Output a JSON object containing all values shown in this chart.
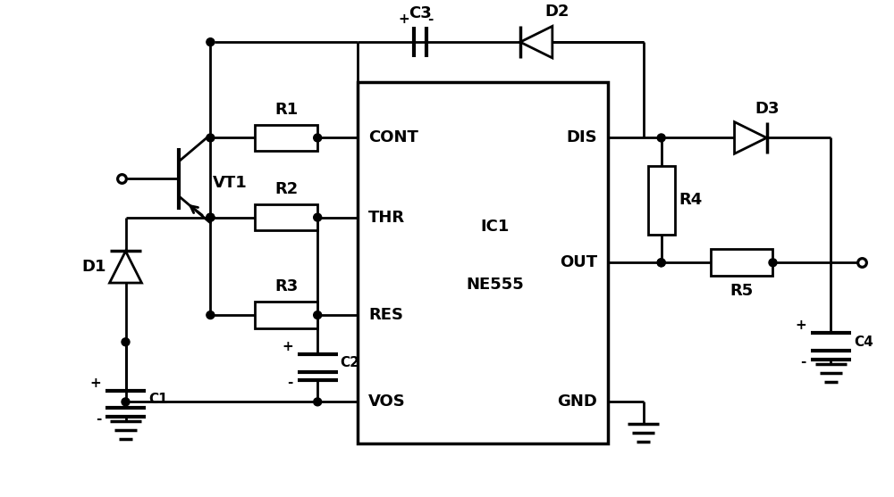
{
  "bg_color": "#ffffff",
  "line_color": "#000000",
  "lw": 2.0,
  "fig_width": 10.0,
  "fig_height": 5.57,
  "dpi": 100,
  "xlim": [
    0,
    100
  ],
  "ylim": [
    0,
    55.7
  ]
}
